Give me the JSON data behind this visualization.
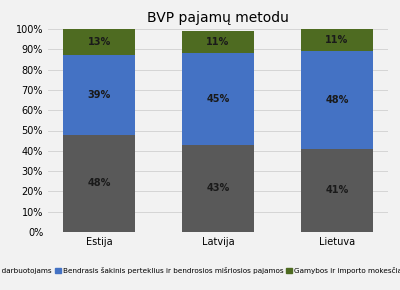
{
  "title": "BVP pajamų metodu",
  "categories": [
    "Estija",
    "Latvija",
    "Lietuva"
  ],
  "series": [
    {
      "label": "Atlygis darbuotojams",
      "values": [
        48,
        43,
        41
      ],
      "color": "#595959"
    },
    {
      "label": "Bendrasis šakinis perteklius ir bendrosios mišriosios pajamos",
      "values": [
        39,
        45,
        48
      ],
      "color": "#4472c4"
    },
    {
      "label": "Gamybos ir importo mokesčiai, minus subsidijos",
      "values": [
        13,
        11,
        11
      ],
      "color": "#4e6b21"
    }
  ],
  "ylim": [
    0,
    100
  ],
  "yticks": [
    0,
    10,
    20,
    30,
    40,
    50,
    60,
    70,
    80,
    90,
    100
  ],
  "yticklabels": [
    "0%",
    "10%",
    "20%",
    "30%",
    "40%",
    "50%",
    "60%",
    "70%",
    "80%",
    "90%",
    "100%"
  ],
  "bar_width": 0.6,
  "background_color": "#f2f2f2",
  "legend_fontsize": 5.2,
  "title_fontsize": 10,
  "tick_fontsize": 7,
  "annotation_fontsize": 7,
  "annotation_color": "#1a1a1a"
}
